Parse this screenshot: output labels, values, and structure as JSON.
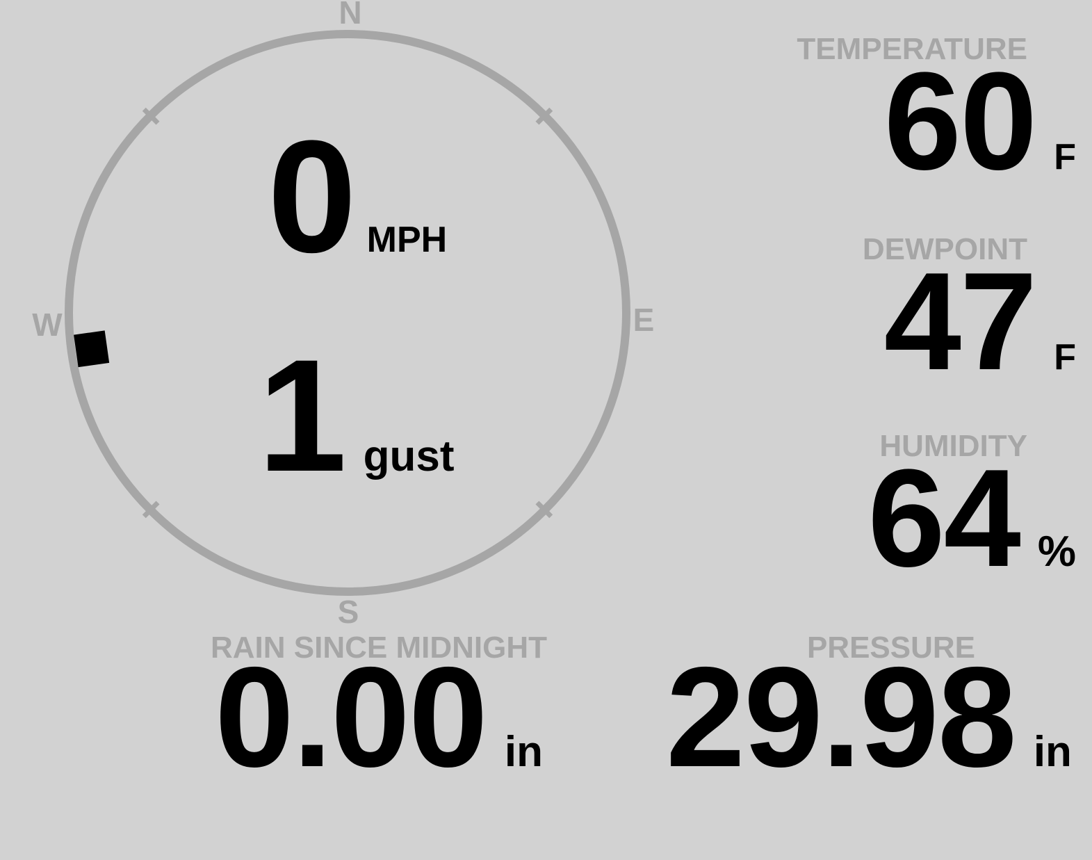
{
  "colors": {
    "background": "#d2d2d2",
    "muted_gray": "#a6a6a6",
    "value_black": "#000000"
  },
  "compass": {
    "labels": {
      "north": "N",
      "east": "E",
      "south": "S",
      "west": "W"
    },
    "wind_speed": {
      "value": "0",
      "unit": "MPH"
    },
    "wind_gust": {
      "value": "1",
      "unit": "gust"
    },
    "wind_direction_deg": 262
  },
  "metrics": [
    {
      "id": "temperature",
      "label": "TEMPERATURE",
      "value": "60",
      "unit": "F"
    },
    {
      "id": "dewpoint",
      "label": "DEWPOINT",
      "value": "47",
      "unit": "F"
    },
    {
      "id": "humidity",
      "label": "HUMIDITY",
      "value": "64",
      "unit": "%"
    }
  ],
  "panels": [
    {
      "id": "rain",
      "label": "RAIN SINCE MIDNIGHT",
      "value": "0.00",
      "unit": "in"
    },
    {
      "id": "pressure",
      "label": "PRESSURE",
      "value": "29.98",
      "unit": "in"
    }
  ]
}
